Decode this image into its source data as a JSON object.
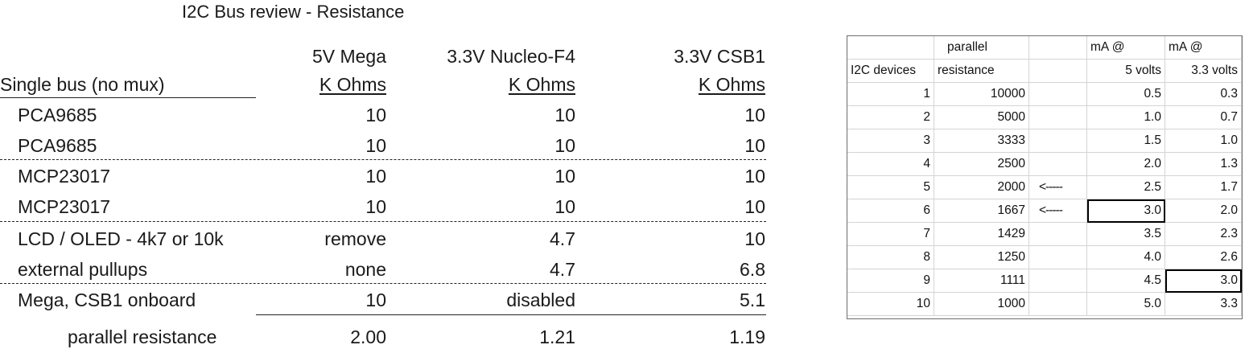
{
  "title": "I2C Bus review  -  Resistance",
  "left_table": {
    "columns": [
      {
        "name": "5V  Mega",
        "unit": "K Ohms"
      },
      {
        "name": "3.3V  Nucleo-F4",
        "unit": "K Ohms"
      },
      {
        "name": "3.3V  CSB1",
        "unit": "K Ohms"
      }
    ],
    "section_label": "Single bus (no mux)",
    "rows": [
      {
        "label": "PCA9685",
        "values": [
          "10",
          "10",
          "10"
        ]
      },
      {
        "label": "PCA9685",
        "values": [
          "10",
          "10",
          "10"
        ]
      },
      {
        "label": "MCP23017",
        "values": [
          "10",
          "10",
          "10"
        ]
      },
      {
        "label": "MCP23017",
        "values": [
          "10",
          "10",
          "10"
        ]
      },
      {
        "label": "LCD / OLED - 4k7 or 10k",
        "values": [
          "remove",
          "4.7",
          "10"
        ]
      },
      {
        "label": "external pullups",
        "values": [
          "none",
          "4.7",
          "6.8"
        ]
      },
      {
        "label": "Mega, CSB1 onboard",
        "values": [
          "10",
          "disabled",
          "5.1"
        ]
      }
    ],
    "total": {
      "label": "parallel resistance",
      "values": [
        "2.00",
        "1.21",
        "1.19"
      ]
    }
  },
  "right_table": {
    "header_row1": [
      "",
      "parallel",
      "",
      "mA @",
      "mA @"
    ],
    "header_row2": [
      "I2C devices",
      "resistance",
      "",
      "5 volts",
      "3.3 volts"
    ],
    "rows": [
      {
        "devices": "1",
        "resistance": "10000",
        "arrow": "",
        "ma5": "0.5",
        "ma33": "0.3"
      },
      {
        "devices": "2",
        "resistance": "5000",
        "arrow": "",
        "ma5": "1.0",
        "ma33": "0.7"
      },
      {
        "devices": "3",
        "resistance": "3333",
        "arrow": "",
        "ma5": "1.5",
        "ma33": "1.0"
      },
      {
        "devices": "4",
        "resistance": "2500",
        "arrow": "",
        "ma5": "2.0",
        "ma33": "1.3"
      },
      {
        "devices": "5",
        "resistance": "2000",
        "arrow": "<-----",
        "ma5": "2.5",
        "ma33": "1.7"
      },
      {
        "devices": "6",
        "resistance": "1667",
        "arrow": "<-----",
        "ma5": "3.0",
        "ma33": "2.0"
      },
      {
        "devices": "7",
        "resistance": "1429",
        "arrow": "",
        "ma5": "3.5",
        "ma33": "2.3"
      },
      {
        "devices": "8",
        "resistance": "1250",
        "arrow": "",
        "ma5": "4.0",
        "ma33": "2.6"
      },
      {
        "devices": "9",
        "resistance": "1111",
        "arrow": "",
        "ma5": "4.5",
        "ma33": "3.0"
      },
      {
        "devices": "10",
        "resistance": "1000",
        "arrow": "",
        "ma5": "5.0",
        "ma33": "3.3"
      }
    ]
  }
}
